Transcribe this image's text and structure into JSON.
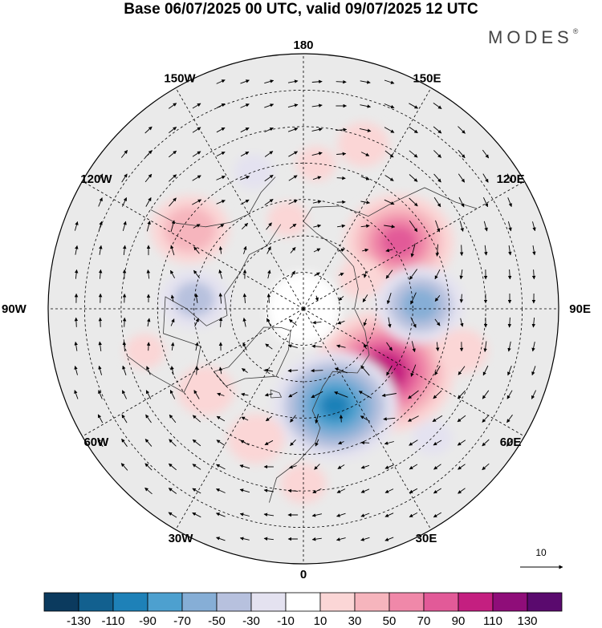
{
  "title": "Base 06/07/2025 00 UTC, valid 09/07/2025 12 UTC",
  "brand": "MODES",
  "brand_mark": "®",
  "longitude_labels": [
    {
      "text": "180",
      "lon": 180
    },
    {
      "text": "150E",
      "lon": 150
    },
    {
      "text": "120E",
      "lon": 120
    },
    {
      "text": "90E",
      "lon": 90
    },
    {
      "text": "60E",
      "lon": 60
    },
    {
      "text": "30E",
      "lon": 30
    },
    {
      "text": "0",
      "lon": 0
    },
    {
      "text": "30W",
      "lon": -30
    },
    {
      "text": "60W",
      "lon": -60
    },
    {
      "text": "90W",
      "lon": -90
    },
    {
      "text": "120W",
      "lon": -120
    },
    {
      "text": "150W",
      "lon": -150
    }
  ],
  "vector_reference": {
    "label": "10",
    "value": 10
  },
  "colorbar": {
    "colors": [
      "#0b3a5e",
      "#12608f",
      "#1e81b8",
      "#4da0cf",
      "#86aed6",
      "#b7c1de",
      "#e4e2f0",
      "#ffffff",
      "#fbd6d6",
      "#f6b5bd",
      "#f088a9",
      "#e25a98",
      "#c41f80",
      "#8f0d79",
      "#5a0a6e"
    ],
    "ticks": [
      "-130",
      "-110",
      "-90",
      "-70",
      "-50",
      "-30",
      "-10",
      "10",
      "30",
      "50",
      "70",
      "90",
      "110",
      "130"
    ]
  },
  "anomalies": [
    {
      "lon": 52,
      "lat": 62,
      "value": 110
    },
    {
      "lon": 125,
      "lat": 58,
      "value": 80
    },
    {
      "lon": 18,
      "lat": 62,
      "value": -95
    },
    {
      "lon": 92,
      "lat": 58,
      "value": -60
    },
    {
      "lon": -125,
      "lat": 52,
      "value": 50
    },
    {
      "lon": -95,
      "lat": 60,
      "value": -40
    },
    {
      "lon": -50,
      "lat": 55,
      "value": 30
    },
    {
      "lon": -20,
      "lat": 52,
      "value": 30
    },
    {
      "lon": 160,
      "lat": 42,
      "value": 25
    },
    {
      "lon": 75,
      "lat": 45,
      "value": 25
    },
    {
      "lon": -160,
      "lat": 50,
      "value": -15
    },
    {
      "lon": 175,
      "lat": 50,
      "value": 15
    },
    {
      "lon": 45,
      "lat": 40,
      "value": -15
    },
    {
      "lon": 0,
      "lat": 42,
      "value": 20
    },
    {
      "lon": -75,
      "lat": 45,
      "value": 15
    },
    {
      "lon": 118,
      "lat": 72,
      "value": 20
    },
    {
      "lon": -170,
      "lat": 65,
      "value": 15
    }
  ]
}
